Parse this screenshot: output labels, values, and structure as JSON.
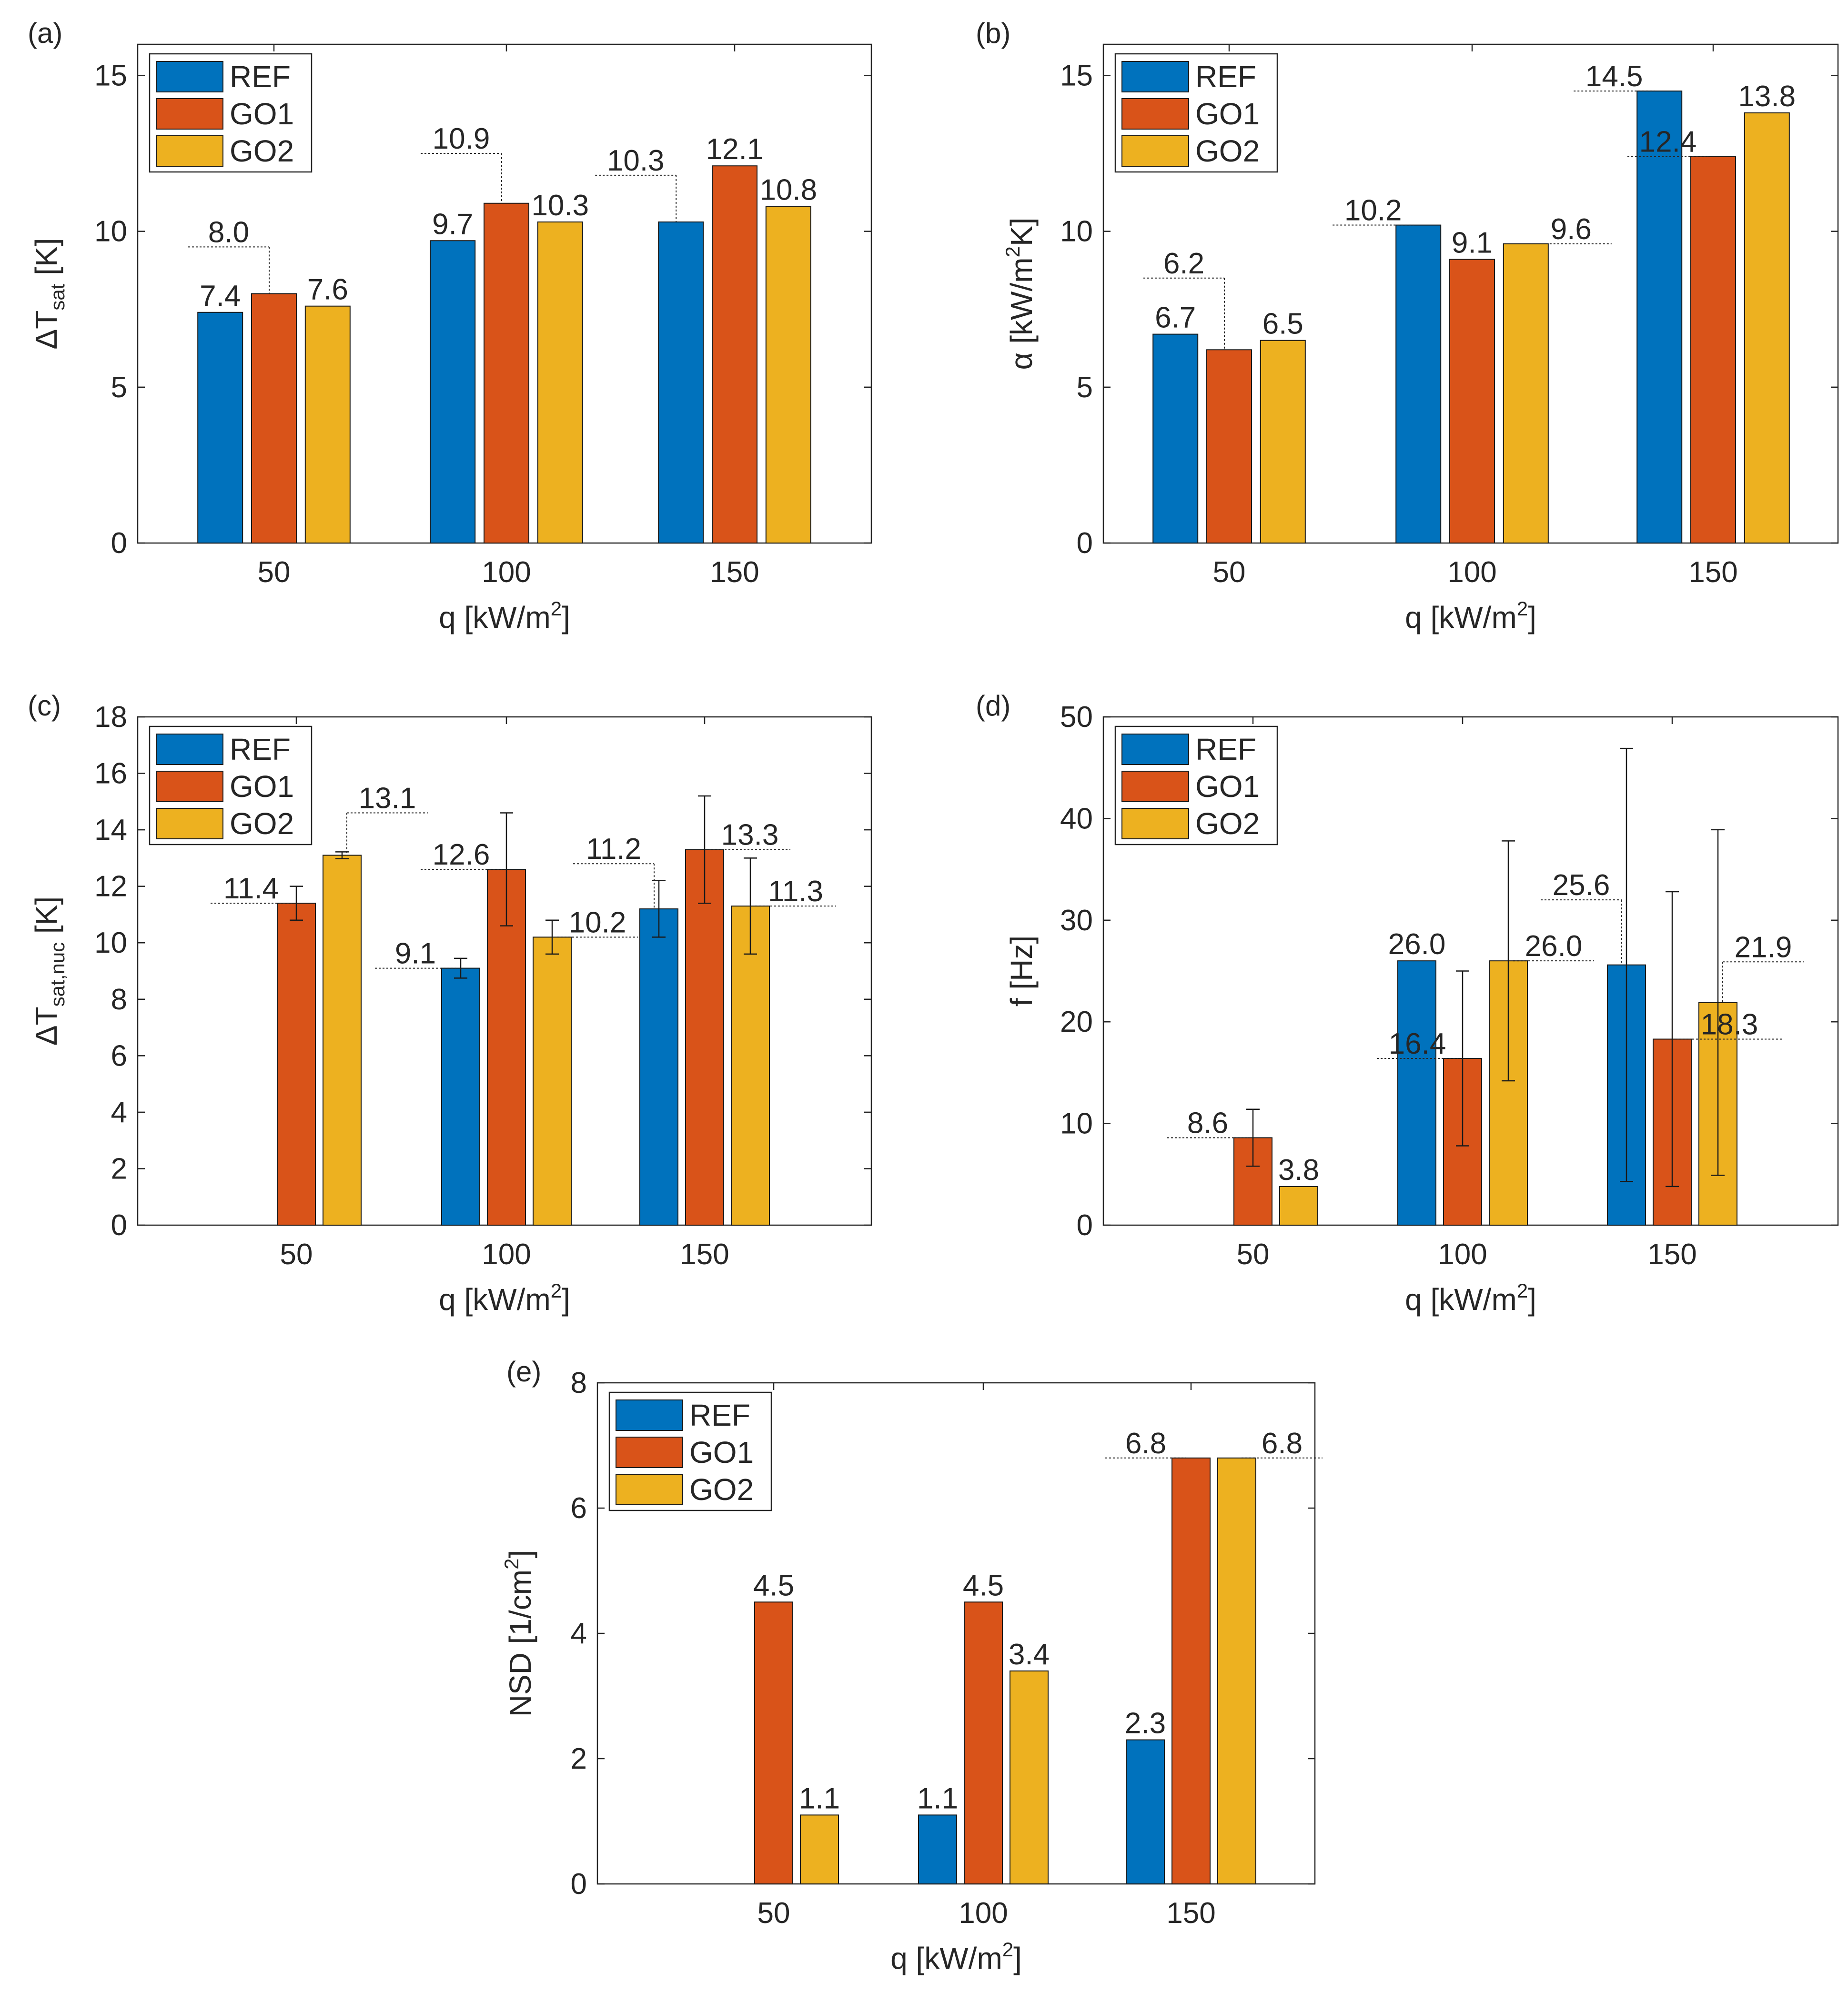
{
  "colors": {
    "REF": "#0072BD",
    "GO1": "#D95319",
    "GO2": "#EDB120"
  },
  "chart_data": [
    {
      "id": "a",
      "type": "bar",
      "panel_label": "(a)",
      "ylabel_main": "ΔT",
      "ylabel_sub": "sat",
      "ylabel_suffix": " [K]",
      "xlabel": "q [kW/m",
      "xlabel_sup": "2",
      "xlabel_suffix": "]",
      "categories": [
        "50",
        "100",
        "150"
      ],
      "ylim": [
        0,
        16
      ],
      "yticks": [
        0,
        5,
        10,
        15
      ],
      "legend": [
        "REF",
        "GO1",
        "GO2"
      ],
      "legend_position": "top-left",
      "series": [
        {
          "name": "REF",
          "values": [
            7.4,
            9.7,
            10.3
          ]
        },
        {
          "name": "GO1",
          "values": [
            8.0,
            10.9,
            12.1
          ]
        },
        {
          "name": "GO2",
          "values": [
            7.6,
            10.3,
            10.8
          ]
        }
      ],
      "annotations": [
        {
          "text": "7.4",
          "cat": 0,
          "series": 0,
          "value": 7.4
        },
        {
          "text": "7.6",
          "cat": 0,
          "series": 2,
          "value": 7.6
        },
        {
          "text": "8.0",
          "cat": 0,
          "series": 1,
          "value": 8.0,
          "callout": true,
          "callout_y": 9.5,
          "side": "left"
        },
        {
          "text": "9.7",
          "cat": 1,
          "series": 0,
          "value": 9.7
        },
        {
          "text": "10.3",
          "cat": 1,
          "series": 2,
          "value": 10.3
        },
        {
          "text": "10.9",
          "cat": 1,
          "series": 1,
          "value": 10.9,
          "callout": true,
          "callout_y": 12.5,
          "side": "left"
        },
        {
          "text": "12.1",
          "cat": 2,
          "series": 1,
          "value": 12.1
        },
        {
          "text": "10.8",
          "cat": 2,
          "series": 2,
          "value": 10.8
        },
        {
          "text": "10.3",
          "cat": 2,
          "series": 0,
          "value": 10.3,
          "callout": true,
          "callout_y": 11.8,
          "side": "left"
        }
      ]
    },
    {
      "id": "b",
      "type": "bar",
      "panel_label": "(b)",
      "ylabel_main": "α [kW/m",
      "ylabel_sub": "",
      "ylabel_sup": "2",
      "ylabel_suffix": "K]",
      "xlabel": "q [kW/m",
      "xlabel_sup": "2",
      "xlabel_suffix": "]",
      "categories": [
        "50",
        "100",
        "150"
      ],
      "ylim": [
        0,
        16
      ],
      "yticks": [
        0,
        5,
        10,
        15
      ],
      "legend": [
        "REF",
        "GO1",
        "GO2"
      ],
      "legend_position": "top-left",
      "series": [
        {
          "name": "REF",
          "values": [
            6.7,
            10.2,
            14.5
          ]
        },
        {
          "name": "GO1",
          "values": [
            6.2,
            9.1,
            12.4
          ]
        },
        {
          "name": "GO2",
          "values": [
            6.5,
            9.6,
            13.8
          ]
        }
      ],
      "annotations": [
        {
          "text": "6.7",
          "cat": 0,
          "series": 0,
          "value": 6.7
        },
        {
          "text": "6.5",
          "cat": 0,
          "series": 2,
          "value": 6.5
        },
        {
          "text": "6.2",
          "cat": 0,
          "series": 1,
          "value": 6.2,
          "callout": true,
          "callout_y": 8.5,
          "side": "left"
        },
        {
          "text": "10.2",
          "cat": 1,
          "series": 0,
          "value": 10.2,
          "callout": true,
          "callout_y": 10.2,
          "side": "left"
        },
        {
          "text": "9.1",
          "cat": 1,
          "series": 1,
          "value": 9.1
        },
        {
          "text": "9.6",
          "cat": 1,
          "series": 2,
          "value": 9.6,
          "callout": true,
          "callout_y": 9.6,
          "side": "right"
        },
        {
          "text": "14.5",
          "cat": 2,
          "series": 0,
          "value": 14.5,
          "callout": true,
          "callout_y": 14.5,
          "side": "left"
        },
        {
          "text": "12.4",
          "cat": 2,
          "series": 1,
          "value": 12.4,
          "callout": true,
          "callout_y": 12.4,
          "side": "left"
        },
        {
          "text": "13.8",
          "cat": 2,
          "series": 2,
          "value": 13.8
        }
      ]
    },
    {
      "id": "c",
      "type": "bar",
      "panel_label": "(c)",
      "ylabel_main": "ΔT",
      "ylabel_sub": "sat,nuc",
      "ylabel_suffix": " [K]",
      "xlabel": "q [kW/m",
      "xlabel_sup": "2",
      "xlabel_suffix": "]",
      "categories": [
        "50",
        "100",
        "150"
      ],
      "ylim": [
        0,
        18
      ],
      "yticks": [
        0,
        2,
        4,
        6,
        8,
        10,
        12,
        14,
        16,
        18
      ],
      "legend": [
        "REF",
        "GO1",
        "GO2"
      ],
      "legend_position": "top-left",
      "series": [
        {
          "name": "REF",
          "values": [
            0,
            9.1,
            11.2
          ],
          "errors": [
            null,
            0.35,
            1.0
          ]
        },
        {
          "name": "GO1",
          "values": [
            11.4,
            12.6,
            13.3
          ],
          "errors": [
            0.6,
            2.0,
            1.9
          ]
        },
        {
          "name": "GO2",
          "values": [
            13.1,
            10.2,
            11.3
          ],
          "errors": [
            0.12,
            0.6,
            1.7
          ]
        }
      ],
      "annotations": [
        {
          "text": "11.4",
          "cat": 0,
          "series": 1,
          "value": 11.4,
          "callout": true,
          "callout_y": 11.4,
          "side": "left"
        },
        {
          "text": "13.1",
          "cat": 0,
          "series": 2,
          "value": 13.1,
          "callout": true,
          "callout_y": 14.6,
          "side": "right"
        },
        {
          "text": "9.1",
          "cat": 1,
          "series": 0,
          "value": 9.1,
          "callout": true,
          "callout_y": 9.1,
          "side": "left"
        },
        {
          "text": "12.6",
          "cat": 1,
          "series": 1,
          "value": 12.6,
          "callout": true,
          "callout_y": 12.6,
          "side": "left"
        },
        {
          "text": "10.2",
          "cat": 1,
          "series": 2,
          "value": 10.2,
          "callout": true,
          "callout_y": 10.2,
          "side": "right"
        },
        {
          "text": "11.2",
          "cat": 2,
          "series": 0,
          "value": 11.2,
          "callout": true,
          "callout_y": 12.8,
          "side": "left"
        },
        {
          "text": "13.3",
          "cat": 2,
          "series": 1,
          "value": 13.3,
          "callout": true,
          "callout_y": 13.3,
          "side": "right"
        },
        {
          "text": "11.3",
          "cat": 2,
          "series": 2,
          "value": 11.3,
          "callout": true,
          "callout_y": 11.3,
          "side": "right"
        }
      ]
    },
    {
      "id": "d",
      "type": "bar",
      "panel_label": "(d)",
      "ylabel_main": "f [Hz]",
      "ylabel_sub": "",
      "ylabel_suffix": "",
      "xlabel": "q [kW/m",
      "xlabel_sup": "2",
      "xlabel_suffix": "]",
      "categories": [
        "50",
        "100",
        "150"
      ],
      "ylim": [
        0,
        50
      ],
      "yticks": [
        0,
        10,
        20,
        30,
        40,
        50
      ],
      "legend": [
        "REF",
        "GO1",
        "GO2"
      ],
      "legend_position": "top-left",
      "series": [
        {
          "name": "REF",
          "values": [
            0,
            26.0,
            25.6
          ],
          "errors": [
            null,
            null,
            21.3
          ]
        },
        {
          "name": "GO1",
          "values": [
            8.6,
            16.4,
            18.3
          ],
          "errors": [
            2.8,
            8.6,
            14.5
          ]
        },
        {
          "name": "GO2",
          "values": [
            3.8,
            26.0,
            21.9
          ],
          "errors": [
            null,
            11.8,
            17.0
          ]
        }
      ],
      "annotations": [
        {
          "text": "8.6",
          "cat": 0,
          "series": 1,
          "value": 8.6,
          "callout": true,
          "callout_y": 8.6,
          "side": "left"
        },
        {
          "text": "3.8",
          "cat": 0,
          "series": 2,
          "value": 3.8
        },
        {
          "text": "26.0",
          "cat": 1,
          "series": 0,
          "value": 26.0
        },
        {
          "text": "16.4",
          "cat": 1,
          "series": 1,
          "value": 16.4,
          "callout": true,
          "callout_y": 16.4,
          "side": "left"
        },
        {
          "text": "26.0",
          "cat": 1,
          "series": 2,
          "value": 26.0,
          "callout": true,
          "callout_y": 26.0,
          "side": "right"
        },
        {
          "text": "25.6",
          "cat": 2,
          "series": 0,
          "value": 25.6,
          "callout": true,
          "callout_y": 32.0,
          "side": "left"
        },
        {
          "text": "18.3",
          "cat": 2,
          "series": 1,
          "value": 18.3,
          "callout": true,
          "callout_y": 18.3,
          "side": "right",
          "reach": "far"
        },
        {
          "text": "21.9",
          "cat": 2,
          "series": 2,
          "value": 21.9,
          "callout": true,
          "callout_y": 25.9,
          "side": "right"
        }
      ]
    },
    {
      "id": "e",
      "type": "bar",
      "panel_label": "(e)",
      "ylabel_main": "NSD [1/cm",
      "ylabel_sub": "",
      "ylabel_sup": "2",
      "ylabel_suffix": "]",
      "xlabel": "q [kW/m",
      "xlabel_sup": "2",
      "xlabel_suffix": "]",
      "categories": [
        "50",
        "100",
        "150"
      ],
      "ylim": [
        0,
        8
      ],
      "yticks": [
        0,
        2,
        4,
        6,
        8
      ],
      "legend": [
        "REF",
        "GO1",
        "GO2"
      ],
      "legend_position": "top-left",
      "series": [
        {
          "name": "REF",
          "values": [
            0,
            1.1,
            2.3
          ]
        },
        {
          "name": "GO1",
          "values": [
            4.5,
            4.5,
            6.8
          ]
        },
        {
          "name": "GO2",
          "values": [
            1.1,
            3.4,
            6.8
          ]
        }
      ],
      "annotations": [
        {
          "text": "4.5",
          "cat": 0,
          "series": 1,
          "value": 4.5
        },
        {
          "text": "1.1",
          "cat": 0,
          "series": 2,
          "value": 1.1
        },
        {
          "text": "1.1",
          "cat": 1,
          "series": 0,
          "value": 1.1
        },
        {
          "text": "4.5",
          "cat": 1,
          "series": 1,
          "value": 4.5
        },
        {
          "text": "3.4",
          "cat": 1,
          "series": 2,
          "value": 3.4
        },
        {
          "text": "2.3",
          "cat": 2,
          "series": 0,
          "value": 2.3
        },
        {
          "text": "6.8",
          "cat": 2,
          "series": 1,
          "value": 6.8,
          "callout": true,
          "callout_y": 6.8,
          "side": "left"
        },
        {
          "text": "6.8",
          "cat": 2,
          "series": 2,
          "value": 6.8,
          "callout": true,
          "callout_y": 6.8,
          "side": "right"
        }
      ]
    }
  ]
}
